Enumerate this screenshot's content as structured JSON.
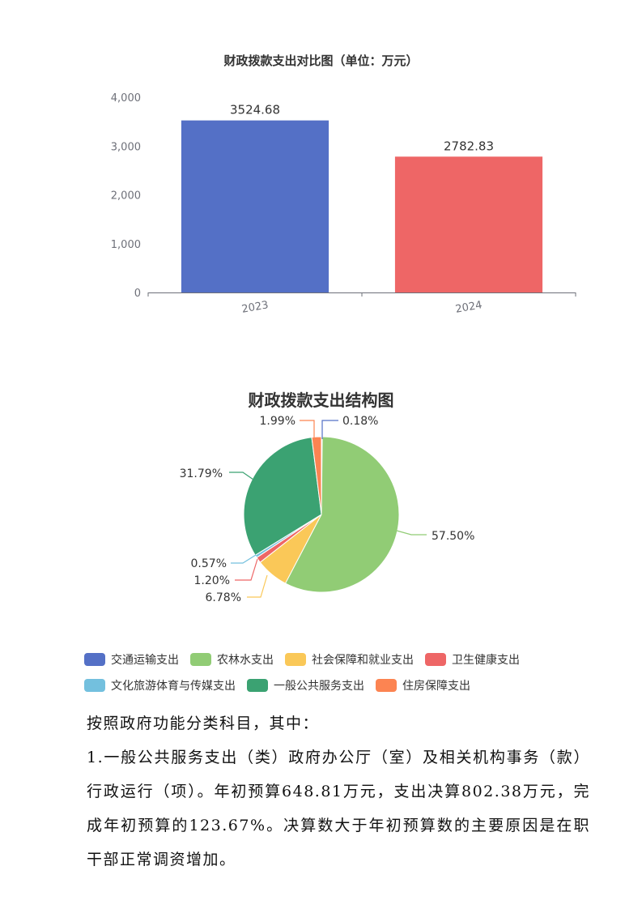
{
  "chart_data": [
    {
      "type": "bar",
      "title": "财政拨款支出对比图（单位：万元）",
      "categories": [
        "2023",
        "2024"
      ],
      "values": [
        3524.68,
        2782.83
      ],
      "data_labels": [
        "3524.68",
        "2782.83"
      ],
      "colors": [
        "#5470c6",
        "#ee6666"
      ],
      "ylim": [
        0,
        4000
      ],
      "yticks": [
        "0",
        "1,000",
        "2,000",
        "3,000",
        "4,000"
      ],
      "ytick_values": [
        0,
        1000,
        2000,
        3000,
        4000
      ],
      "grid": false,
      "xlabel": "",
      "ylabel": ""
    },
    {
      "type": "pie",
      "title": "财政拨款支出结构图",
      "legend_position": "bottom",
      "slices": [
        {
          "name": "交通运输支出",
          "value": 0.18,
          "label": "0.18%",
          "color": "#5470c6"
        },
        {
          "name": "农林水支出",
          "value": 57.5,
          "label": "57.50%",
          "color": "#91cc75"
        },
        {
          "name": "社会保障和就业支出",
          "value": 6.78,
          "label": "6.78%",
          "color": "#fac858"
        },
        {
          "name": "卫生健康支出",
          "value": 1.2,
          "label": "1.20%",
          "color": "#ee6666"
        },
        {
          "name": "文化旅游体育与传媒支出",
          "value": 0.57,
          "label": "0.57%",
          "color": "#73c0de"
        },
        {
          "name": "一般公共服务支出",
          "value": 31.79,
          "label": "31.79%",
          "color": "#3ba272"
        },
        {
          "name": "住房保障支出",
          "value": 1.99,
          "label": "1.99%",
          "color": "#fc8452"
        }
      ]
    }
  ],
  "text": {
    "intro": "按照政府功能分类科目，其中：",
    "item1": "1.一般公共服务支出（类）政府办公厅（室）及相关机构事务（款）行政运行（项）。年初预算648.81万元，支出决算802.38万元，完成年初预算的123.67%。决算数大于年初预算数的主要原因是在职干部正常调资增加。"
  }
}
